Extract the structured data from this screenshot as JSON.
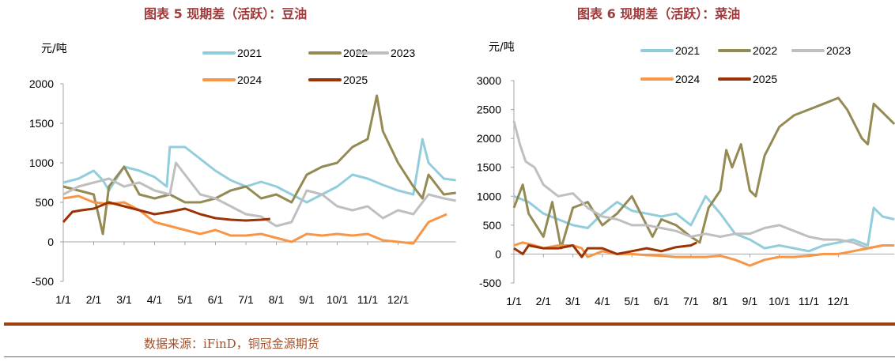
{
  "chart_data": [
    {
      "type": "line",
      "title": "图表 5 现期差（活跃）：豆油",
      "ylabel": "元/吨",
      "xlabel": "",
      "ylim": [
        -500,
        2000
      ],
      "yticks": [
        -500,
        0,
        500,
        1000,
        1500,
        2000
      ],
      "xlim": [
        0,
        12.9
      ],
      "xtick_labels": [
        "1/1",
        "2/1",
        "3/1",
        "4/1",
        "5/1",
        "6/1",
        "7/1",
        "8/1",
        "9/1",
        "10/1",
        "11/1",
        "12/1"
      ],
      "x_unit": "months since 1/1",
      "legend_placement": "top-right",
      "series": [
        {
          "name": "2021",
          "color": "#92cddc",
          "points": [
            [
              0,
              750
            ],
            [
              0.5,
              800
            ],
            [
              1,
              900
            ],
            [
              1.3,
              780
            ],
            [
              1.5,
              650
            ],
            [
              2,
              950
            ],
            [
              2.5,
              900
            ],
            [
              3,
              820
            ],
            [
              3.4,
              700
            ],
            [
              3.5,
              1200
            ],
            [
              4,
              1200
            ],
            [
              4.5,
              1050
            ],
            [
              5,
              900
            ],
            [
              5.5,
              780
            ],
            [
              6,
              700
            ],
            [
              6.5,
              760
            ],
            [
              7,
              700
            ],
            [
              7.5,
              600
            ],
            [
              8,
              500
            ],
            [
              8.5,
              600
            ],
            [
              9,
              700
            ],
            [
              9.5,
              850
            ],
            [
              10,
              800
            ],
            [
              10.5,
              720
            ],
            [
              11,
              650
            ],
            [
              11.5,
              600
            ],
            [
              11.8,
              1300
            ],
            [
              12,
              1000
            ],
            [
              12.5,
              800
            ],
            [
              12.9,
              780
            ]
          ]
        },
        {
          "name": "2022",
          "color": "#948a54",
          "points": [
            [
              0,
              700
            ],
            [
              0.5,
              650
            ],
            [
              1,
              600
            ],
            [
              1.3,
              100
            ],
            [
              1.5,
              700
            ],
            [
              2,
              950
            ],
            [
              2.5,
              600
            ],
            [
              3,
              550
            ],
            [
              3.5,
              600
            ],
            [
              4,
              500
            ],
            [
              4.5,
              500
            ],
            [
              5,
              550
            ],
            [
              5.5,
              650
            ],
            [
              6,
              700
            ],
            [
              6.5,
              550
            ],
            [
              7,
              600
            ],
            [
              7.5,
              500
            ],
            [
              8,
              850
            ],
            [
              8.5,
              950
            ],
            [
              9,
              1000
            ],
            [
              9.5,
              1200
            ],
            [
              10,
              1300
            ],
            [
              10.3,
              1850
            ],
            [
              10.5,
              1400
            ],
            [
              11,
              1000
            ],
            [
              11.5,
              700
            ],
            [
              11.8,
              550
            ],
            [
              12,
              850
            ],
            [
              12.5,
              600
            ],
            [
              12.9,
              620
            ]
          ]
        },
        {
          "name": "2023",
          "color": "#bfbfbf",
          "points": [
            [
              0,
              600
            ],
            [
              0.5,
              700
            ],
            [
              1,
              750
            ],
            [
              1.5,
              800
            ],
            [
              2,
              700
            ],
            [
              2.5,
              750
            ],
            [
              3,
              650
            ],
            [
              3.5,
              600
            ],
            [
              3.7,
              1000
            ],
            [
              4,
              850
            ],
            [
              4.5,
              600
            ],
            [
              5,
              550
            ],
            [
              5.5,
              450
            ],
            [
              6,
              350
            ],
            [
              6.5,
              320
            ],
            [
              7,
              200
            ],
            [
              7.5,
              250
            ],
            [
              8,
              650
            ],
            [
              8.5,
              600
            ],
            [
              9,
              450
            ],
            [
              9.5,
              400
            ],
            [
              10,
              450
            ],
            [
              10.5,
              300
            ],
            [
              11,
              400
            ],
            [
              11.5,
              350
            ],
            [
              12,
              600
            ],
            [
              12.5,
              550
            ],
            [
              12.9,
              520
            ]
          ]
        },
        {
          "name": "2024",
          "color": "#f79646",
          "points": [
            [
              0,
              550
            ],
            [
              0.5,
              580
            ],
            [
              1,
              500
            ],
            [
              1.5,
              480
            ],
            [
              2,
              500
            ],
            [
              2.5,
              400
            ],
            [
              3,
              250
            ],
            [
              3.5,
              200
            ],
            [
              4,
              150
            ],
            [
              4.5,
              100
            ],
            [
              5,
              150
            ],
            [
              5.5,
              80
            ],
            [
              6,
              80
            ],
            [
              6.5,
              100
            ],
            [
              7,
              50
            ],
            [
              7.5,
              0
            ],
            [
              8,
              100
            ],
            [
              8.5,
              80
            ],
            [
              9,
              100
            ],
            [
              9.5,
              80
            ],
            [
              10,
              100
            ],
            [
              10.5,
              20
            ],
            [
              11,
              0
            ],
            [
              11.5,
              -20
            ],
            [
              12,
              250
            ],
            [
              12.3,
              300
            ],
            [
              12.6,
              350
            ]
          ]
        },
        {
          "name": "2025",
          "color": "#9c3306",
          "points": [
            [
              0,
              250
            ],
            [
              0.3,
              380
            ],
            [
              0.6,
              400
            ],
            [
              1,
              420
            ],
            [
              1.5,
              500
            ],
            [
              2,
              450
            ],
            [
              2.5,
              400
            ],
            [
              3,
              350
            ],
            [
              3.5,
              380
            ],
            [
              4,
              420
            ],
            [
              4.5,
              350
            ],
            [
              5,
              300
            ],
            [
              5.5,
              280
            ],
            [
              6,
              270
            ],
            [
              6.5,
              280
            ],
            [
              6.8,
              290
            ]
          ]
        }
      ]
    },
    {
      "type": "line",
      "title": "图表 6 现期差（活跃）：菜油",
      "ylabel": "元/吨",
      "xlabel": "",
      "ylim": [
        -500,
        3000
      ],
      "yticks": [
        -500,
        0,
        500,
        1000,
        1500,
        2000,
        2500,
        3000
      ],
      "xlim": [
        0,
        12.9
      ],
      "xtick_labels": [
        "1/1",
        "2/1",
        "3/1",
        "4/1",
        "5/1",
        "6/1",
        "7/1",
        "8/1",
        "9/1",
        "10/1",
        "11/1",
        "12/1"
      ],
      "x_unit": "months since 1/1",
      "legend_placement": "top-right",
      "series": [
        {
          "name": "2021",
          "color": "#92cddc",
          "points": [
            [
              0,
              1000
            ],
            [
              0.5,
              900
            ],
            [
              1,
              700
            ],
            [
              1.5,
              600
            ],
            [
              2,
              500
            ],
            [
              2.5,
              450
            ],
            [
              3,
              700
            ],
            [
              3.5,
              900
            ],
            [
              4,
              750
            ],
            [
              4.5,
              700
            ],
            [
              5,
              650
            ],
            [
              5.5,
              700
            ],
            [
              6,
              500
            ],
            [
              6.5,
              1000
            ],
            [
              7,
              700
            ],
            [
              7.5,
              350
            ],
            [
              8,
              250
            ],
            [
              8.5,
              100
            ],
            [
              9,
              150
            ],
            [
              9.5,
              100
            ],
            [
              10,
              50
            ],
            [
              10.5,
              150
            ],
            [
              11,
              200
            ],
            [
              11.5,
              250
            ],
            [
              12,
              150
            ],
            [
              12.2,
              800
            ],
            [
              12.5,
              650
            ],
            [
              12.9,
              600
            ]
          ]
        },
        {
          "name": "2022",
          "color": "#948a54",
          "points": [
            [
              0,
              800
            ],
            [
              0.3,
              1200
            ],
            [
              0.5,
              700
            ],
            [
              1,
              300
            ],
            [
              1.3,
              900
            ],
            [
              1.6,
              100
            ],
            [
              2,
              800
            ],
            [
              2.5,
              900
            ],
            [
              3,
              500
            ],
            [
              3.5,
              700
            ],
            [
              4,
              1000
            ],
            [
              4.3,
              700
            ],
            [
              4.7,
              300
            ],
            [
              5,
              600
            ],
            [
              5.5,
              500
            ],
            [
              6,
              300
            ],
            [
              6.3,
              200
            ],
            [
              6.6,
              800
            ],
            [
              7,
              1100
            ],
            [
              7.2,
              1800
            ],
            [
              7.4,
              1500
            ],
            [
              7.7,
              1900
            ],
            [
              8,
              1100
            ],
            [
              8.2,
              1000
            ],
            [
              8.5,
              1700
            ],
            [
              9,
              2200
            ],
            [
              9.5,
              2400
            ],
            [
              10,
              2500
            ],
            [
              10.5,
              2600
            ],
            [
              11,
              2700
            ],
            [
              11.3,
              2500
            ],
            [
              11.8,
              2000
            ],
            [
              12,
              1900
            ],
            [
              12.2,
              2600
            ],
            [
              12.5,
              2450
            ],
            [
              12.9,
              2250
            ]
          ]
        },
        {
          "name": "2023",
          "color": "#bfbfbf",
          "points": [
            [
              0,
              2300
            ],
            [
              0.2,
              1900
            ],
            [
              0.4,
              1600
            ],
            [
              0.7,
              1500
            ],
            [
              1,
              1200
            ],
            [
              1.5,
              1000
            ],
            [
              2,
              1050
            ],
            [
              2.5,
              800
            ],
            [
              3,
              650
            ],
            [
              3.5,
              600
            ],
            [
              4,
              500
            ],
            [
              4.5,
              500
            ],
            [
              5,
              450
            ],
            [
              5.5,
              400
            ],
            [
              6,
              300
            ],
            [
              6.5,
              350
            ],
            [
              7,
              300
            ],
            [
              7.5,
              350
            ],
            [
              8,
              350
            ],
            [
              8.5,
              450
            ],
            [
              9,
              500
            ],
            [
              9.5,
              400
            ],
            [
              10,
              300
            ],
            [
              10.5,
              250
            ],
            [
              11,
              250
            ],
            [
              11.5,
              200
            ],
            [
              12,
              100
            ],
            [
              12.5,
              150
            ]
          ]
        },
        {
          "name": "2024",
          "color": "#f79646",
          "points": [
            [
              0,
              150
            ],
            [
              0.3,
              200
            ],
            [
              0.7,
              150
            ],
            [
              1,
              100
            ],
            [
              1.5,
              150
            ],
            [
              2,
              150
            ],
            [
              2.3,
              100
            ],
            [
              2.5,
              -50
            ],
            [
              3,
              50
            ],
            [
              3.5,
              0
            ],
            [
              4,
              0
            ],
            [
              4.5,
              -20
            ],
            [
              5,
              -30
            ],
            [
              5.5,
              -50
            ],
            [
              6,
              -50
            ],
            [
              6.5,
              -50
            ],
            [
              7,
              -30
            ],
            [
              7.5,
              -100
            ],
            [
              8,
              -200
            ],
            [
              8.5,
              -100
            ],
            [
              9,
              -50
            ],
            [
              9.5,
              -50
            ],
            [
              10,
              -30
            ],
            [
              10.5,
              0
            ],
            [
              11,
              0
            ],
            [
              11.5,
              50
            ],
            [
              12,
              100
            ],
            [
              12.5,
              150
            ],
            [
              12.9,
              150
            ]
          ]
        },
        {
          "name": "2025",
          "color": "#9c3306",
          "points": [
            [
              0,
              100
            ],
            [
              0.3,
              0
            ],
            [
              0.5,
              150
            ],
            [
              1,
              100
            ],
            [
              1.5,
              100
            ],
            [
              2,
              150
            ],
            [
              2.3,
              -50
            ],
            [
              2.5,
              100
            ],
            [
              3,
              100
            ],
            [
              3.5,
              0
            ],
            [
              4,
              50
            ],
            [
              4.5,
              100
            ],
            [
              5,
              50
            ],
            [
              5.5,
              120
            ],
            [
              6,
              150
            ],
            [
              6.2,
              200
            ]
          ]
        }
      ]
    }
  ],
  "source": "数据来源：iFinD，铜冠金源期货"
}
